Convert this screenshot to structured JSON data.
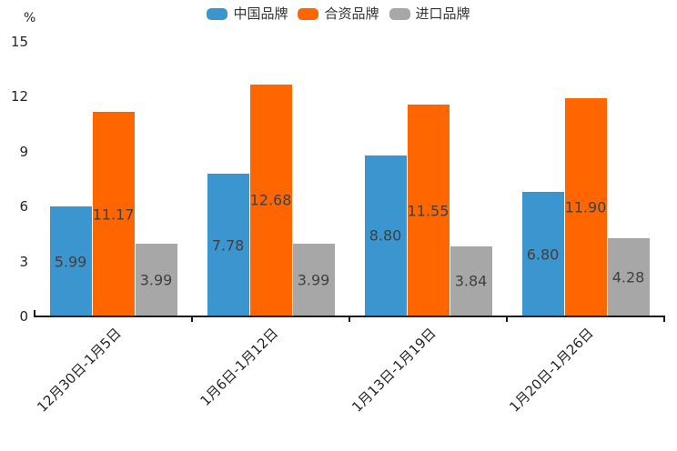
{
  "chart_data": {
    "type": "bar",
    "title": "",
    "xlabel": "",
    "ylabel": "%",
    "ylim": [
      0,
      15
    ],
    "yticks": [
      0,
      3,
      6,
      9,
      12,
      15
    ],
    "grid": false,
    "legend_position": "top-center",
    "value_label_decimals": 2,
    "categories": [
      "12月30日-1月5日",
      "1月6日-1月12日",
      "1月13日-1月19日",
      "1月20日-1月26日"
    ],
    "series": [
      {
        "name": "中国品牌",
        "color": "#3B96D0",
        "values": [
          5.99,
          7.78,
          8.8,
          6.8
        ]
      },
      {
        "name": "合资品牌",
        "color": "#FF6600",
        "values": [
          11.17,
          12.68,
          11.55,
          11.9
        ]
      },
      {
        "name": "进口品牌",
        "color": "#A7A7A7",
        "values": [
          3.99,
          3.99,
          3.84,
          4.28
        ]
      }
    ]
  },
  "colors": {
    "background": "#FFFFFF",
    "axis": "#1A1A1A",
    "tick_text": "#262626",
    "value_text": "#404040",
    "legend_text": "#333333"
  }
}
